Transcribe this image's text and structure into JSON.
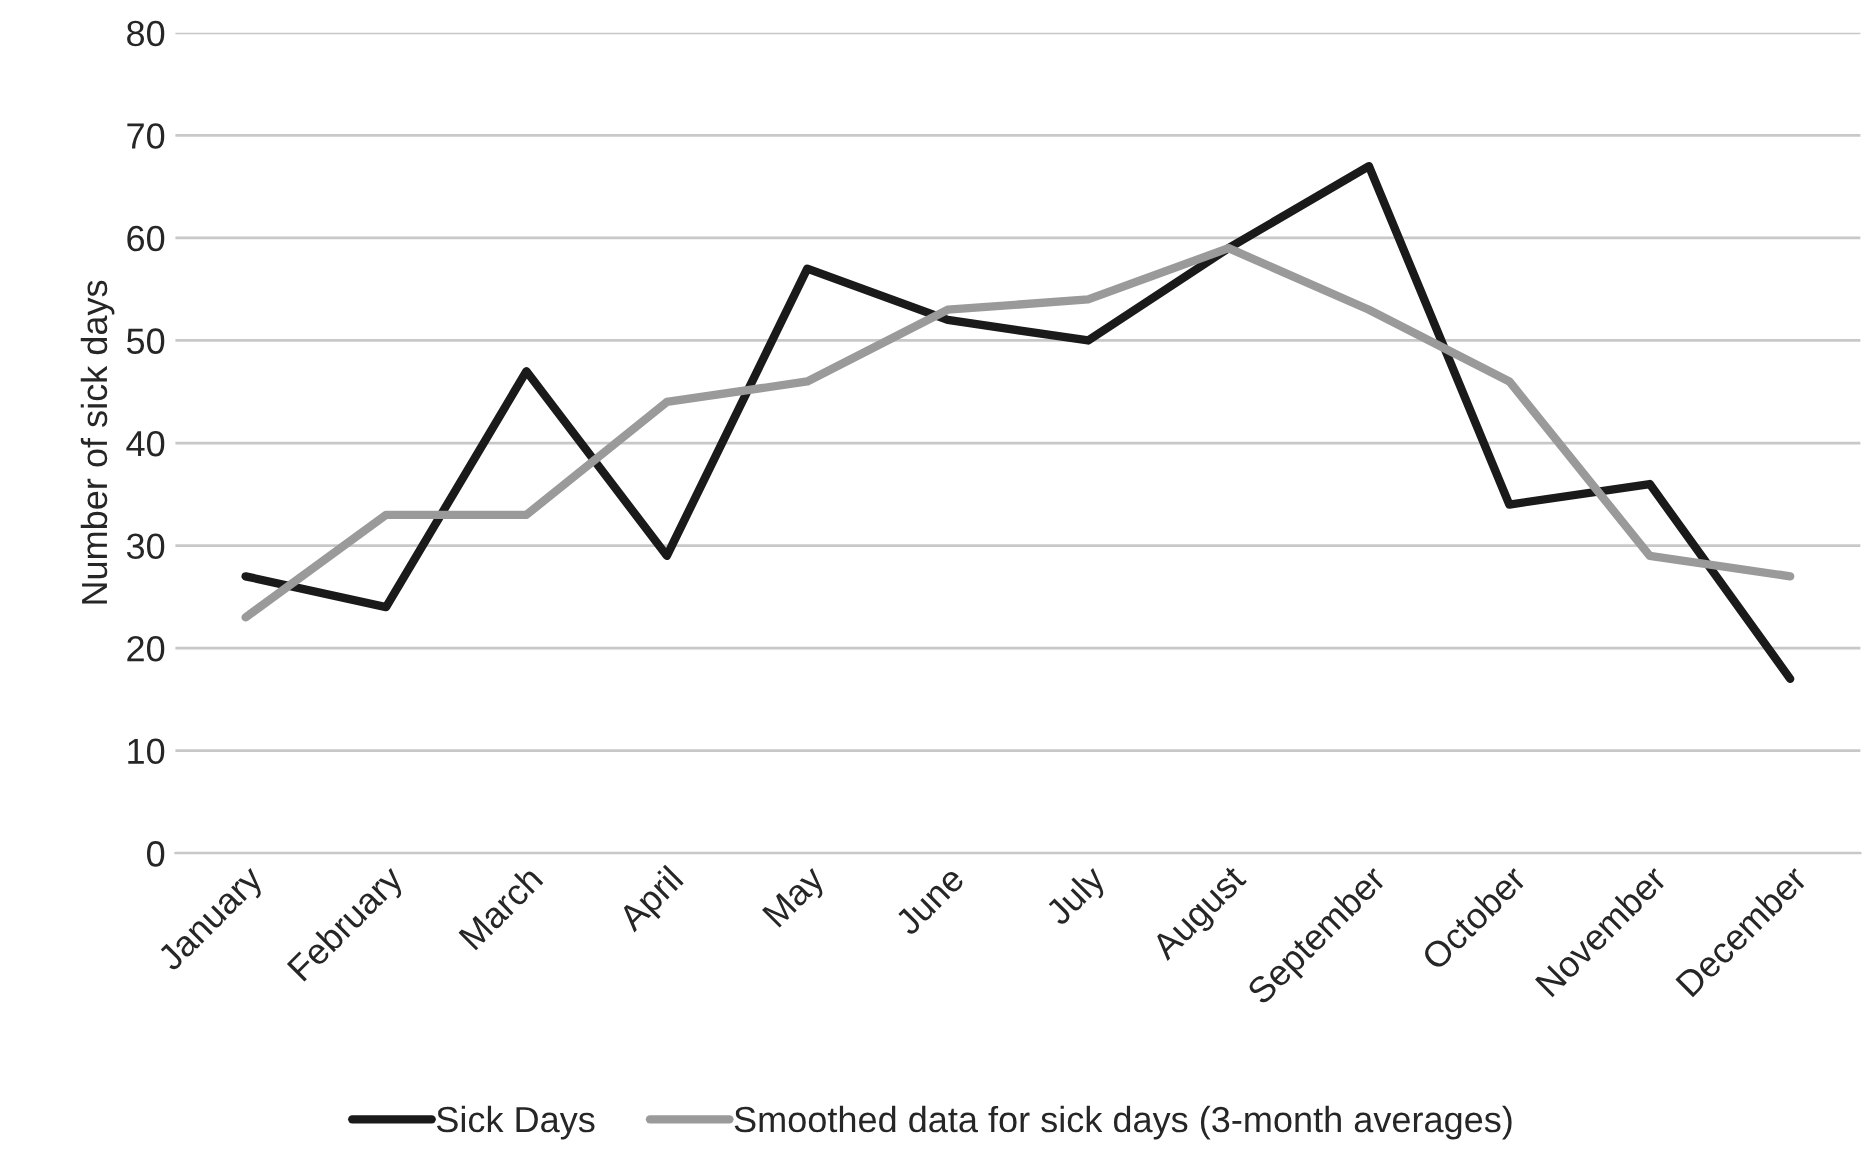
{
  "chart_data": {
    "type": "line",
    "ylabel": "Number of sick days",
    "categories": [
      "January",
      "February",
      "March",
      "April",
      "May",
      "June",
      "July",
      "August",
      "September",
      "October",
      "November",
      "December"
    ],
    "series": [
      {
        "name": "Sick Days",
        "color": "#1a1a1a",
        "values": [
          27,
          24,
          47,
          29,
          57,
          52,
          50,
          59,
          67,
          34,
          36,
          17
        ]
      },
      {
        "name": "Smoothed data for sick days (3-month averages)",
        "color": "#9a9a9a",
        "values": [
          23,
          33,
          33,
          44,
          46,
          53,
          54,
          59,
          53,
          46,
          29,
          27
        ]
      }
    ],
    "ylim": [
      0,
      80
    ],
    "yticks": [
      0,
      10,
      20,
      30,
      40,
      50,
      60,
      70,
      80
    ],
    "grid": "y",
    "legend": "bottom",
    "marker": "none",
    "line_style": "solid"
  }
}
